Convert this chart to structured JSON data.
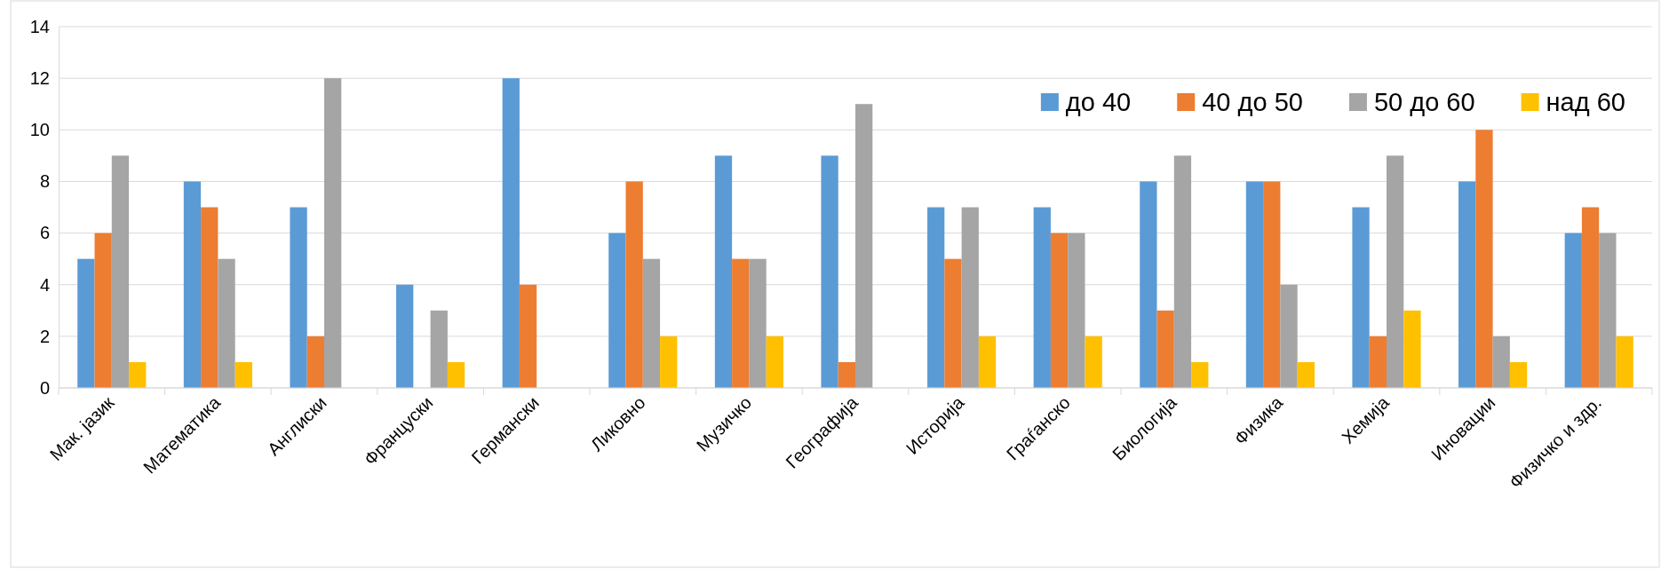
{
  "chart_data": {
    "type": "bar",
    "categories": [
      "Мак. јазик",
      "Математика",
      "Англиски",
      "Француски",
      "Германски",
      "Ликовно",
      "Музичко",
      "Географија",
      "Историја",
      "Граѓанско",
      "Биологија",
      "Физика",
      "Хемија",
      "Иновации",
      "Физичко и здр."
    ],
    "series": [
      {
        "name": "до 40",
        "color": "#5b9bd5",
        "values": [
          5,
          8,
          7,
          4,
          12,
          6,
          9,
          9,
          7,
          7,
          8,
          8,
          7,
          8,
          6
        ]
      },
      {
        "name": "40 до 50",
        "color": "#ed7d31",
        "values": [
          6,
          7,
          2,
          0,
          4,
          8,
          5,
          1,
          5,
          6,
          3,
          8,
          2,
          10,
          7
        ]
      },
      {
        "name": "50 до 60",
        "color": "#a5a5a5",
        "values": [
          9,
          5,
          12,
          3,
          0,
          5,
          5,
          11,
          7,
          6,
          9,
          4,
          9,
          2,
          6
        ]
      },
      {
        "name": "над 60",
        "color": "#ffc000",
        "values": [
          1,
          1,
          0,
          1,
          0,
          2,
          2,
          0,
          2,
          2,
          1,
          1,
          3,
          1,
          2
        ]
      }
    ],
    "ylim": [
      0,
      14
    ],
    "yticks": [
      0,
      2,
      4,
      6,
      8,
      10,
      12,
      14
    ],
    "grid": "y",
    "legend": "top right"
  }
}
